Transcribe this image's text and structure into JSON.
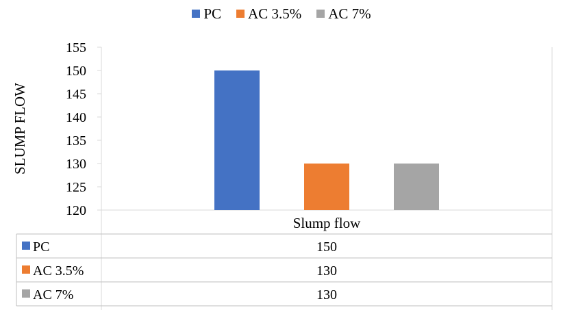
{
  "chart_data": {
    "type": "bar",
    "title": "",
    "xlabel": "",
    "ylabel": "SLUMP FLOW",
    "categories": [
      "Slump flow"
    ],
    "series": [
      {
        "name": "PC",
        "values": [
          150
        ],
        "color": "#4472C4"
      },
      {
        "name": "AC 3.5%",
        "values": [
          130
        ],
        "color": "#ED7D31"
      },
      {
        "name": "AC 7%",
        "values": [
          130
        ],
        "color": "#A5A5A5"
      }
    ],
    "ylim": [
      120,
      155
    ],
    "yticks": [
      120,
      125,
      130,
      135,
      140,
      145,
      150,
      155
    ],
    "legend_position": "top",
    "grid": false,
    "data_table": true
  }
}
